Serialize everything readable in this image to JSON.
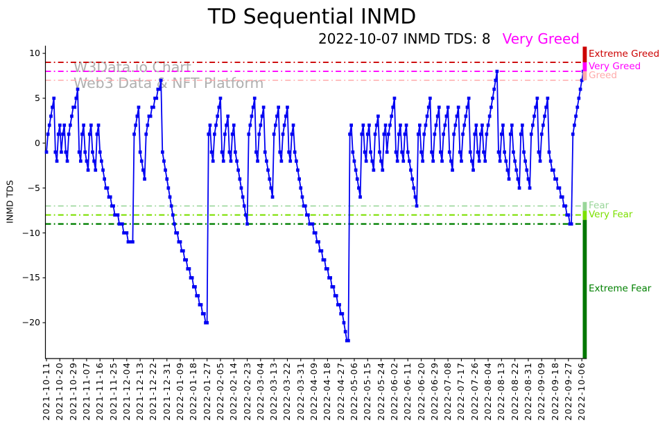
{
  "header": {
    "title": "TD Sequential INMD",
    "subtitle_left": "2022-10-07 INMD TDS: 8",
    "subtitle_status": "Very Greed",
    "subtitle_status_color": "#ff00ff"
  },
  "watermark": {
    "line1": "W3Data.io Chart",
    "line2": "Web3 Data & NFT Platform"
  },
  "chart_data": {
    "type": "line",
    "title": "TD Sequential INMD",
    "ylabel": "INMD TDS",
    "legend_position": "none",
    "grid": false,
    "x_start_date": "2021-10-11",
    "x_end_date": "2022-10-07",
    "x_tick_labels": [
      "2021-10-11",
      "2021-10-20",
      "2021-10-29",
      "2021-11-07",
      "2021-11-16",
      "2021-11-25",
      "2021-12-04",
      "2021-12-13",
      "2021-12-22",
      "2021-12-31",
      "2022-01-09",
      "2022-01-18",
      "2022-01-27",
      "2022-02-05",
      "2022-02-14",
      "2022-02-23",
      "2022-03-04",
      "2022-03-13",
      "2022-03-22",
      "2022-03-31",
      "2022-04-09",
      "2022-04-18",
      "2022-04-27",
      "2022-05-06",
      "2022-05-15",
      "2022-05-24",
      "2022-06-02",
      "2022-06-11",
      "2022-06-20",
      "2022-06-29",
      "2022-07-08",
      "2022-07-17",
      "2022-07-26",
      "2022-08-04",
      "2022-08-13",
      "2022-08-22",
      "2022-08-31",
      "2022-09-09",
      "2022-09-18",
      "2022-09-27",
      "2022-10-06"
    ],
    "y_tick_labels": [
      "10",
      "5",
      "0",
      "−5",
      "−10",
      "−15",
      "−20"
    ],
    "y_tick_values": [
      10,
      5,
      0,
      -5,
      -10,
      -15,
      -20
    ],
    "ylim": [
      -24,
      10.8
    ],
    "thresholds": [
      {
        "label": "Extreme Greed",
        "value": 9,
        "color": "#cc0000"
      },
      {
        "label": "Very Greed",
        "value": 8,
        "color": "#ff00ff"
      },
      {
        "label": "Greed",
        "value": 7,
        "color": "#ffaaaa"
      },
      {
        "label": "Fear",
        "value": -7,
        "color": "#99d699"
      },
      {
        "label": "Very Fear",
        "value": -8,
        "color": "#7ce000"
      },
      {
        "label": "Extreme Fear",
        "value": -9,
        "color": "#008000"
      }
    ],
    "zones": [
      {
        "name": "extreme-greed",
        "color": "#cc0000",
        "from": 10.75,
        "to": 9.0
      },
      {
        "name": "very-greed",
        "color": "#ff00ff",
        "from": 9.0,
        "to": 8.0
      },
      {
        "name": "greed",
        "color": "#ffaaaa",
        "from": 8.0,
        "to": 7.0
      },
      {
        "name": "fear",
        "color": "#99d699",
        "from": -6.55,
        "to": -7.55
      },
      {
        "name": "very-fear",
        "color": "#7ce000",
        "from": -7.55,
        "to": -8.55
      },
      {
        "name": "extreme-fear",
        "color": "#007700",
        "from": -8.55,
        "to": -23.95
      }
    ],
    "series": [
      {
        "name": "INMD TDS",
        "color": "#0000f2",
        "marker": "square",
        "values": [
          -1,
          1,
          2,
          3,
          4,
          5,
          -1,
          -2,
          1,
          2,
          -1,
          1,
          2,
          -1,
          -2,
          1,
          2,
          3,
          4,
          4,
          5,
          6,
          -1,
          -2,
          1,
          2,
          -1,
          -2,
          -3,
          1,
          2,
          -1,
          -2,
          -3,
          1,
          2,
          -1,
          -2,
          -3,
          -4,
          -5,
          -5,
          -6,
          -6,
          -7,
          -7,
          -8,
          -8,
          -8,
          -9,
          -9,
          -9,
          -10,
          -10,
          -10,
          -11,
          -11,
          -11,
          -11,
          1,
          2,
          3,
          4,
          -1,
          -2,
          -3,
          -4,
          1,
          2,
          3,
          3,
          4,
          4,
          5,
          5,
          6,
          6,
          7,
          -1,
          -2,
          -3,
          -4,
          -5,
          -6,
          -7,
          -8,
          -9,
          -10,
          -10,
          -11,
          -11,
          -12,
          -12,
          -13,
          -13,
          -14,
          -14,
          -15,
          -15,
          -16,
          -16,
          -17,
          -17,
          -18,
          -18,
          -19,
          -19,
          -20,
          -20,
          1,
          2,
          -1,
          -2,
          1,
          2,
          3,
          4,
          5,
          -1,
          -2,
          1,
          2,
          3,
          -1,
          -2,
          1,
          2,
          -1,
          -2,
          -3,
          -4,
          -5,
          -6,
          -7,
          -8,
          -9,
          1,
          2,
          3,
          4,
          5,
          -1,
          -2,
          1,
          2,
          3,
          4,
          -1,
          -2,
          -3,
          -4,
          -5,
          -6,
          1,
          2,
          3,
          4,
          -1,
          -2,
          1,
          2,
          3,
          4,
          -1,
          -2,
          1,
          2,
          -1,
          -2,
          -3,
          -4,
          -5,
          -6,
          -7,
          -7,
          -8,
          -8,
          -9,
          -9,
          -9,
          -10,
          -10,
          -11,
          -11,
          -12,
          -12,
          -13,
          -13,
          -14,
          -14,
          -15,
          -15,
          -16,
          -16,
          -17,
          -17,
          -18,
          -18,
          -19,
          -19,
          -20,
          -21,
          -22,
          -22,
          1,
          2,
          -1,
          -2,
          -3,
          -4,
          -5,
          -6,
          1,
          2,
          -1,
          -2,
          1,
          2,
          -1,
          -2,
          -3,
          1,
          2,
          3,
          -1,
          -2,
          -3,
          1,
          2,
          -1,
          1,
          2,
          3,
          4,
          5,
          -1,
          -2,
          1,
          2,
          -1,
          -2,
          1,
          2,
          -1,
          -2,
          -3,
          -4,
          -5,
          -6,
          -7,
          1,
          2,
          -1,
          -2,
          1,
          2,
          3,
          4,
          5,
          -1,
          -2,
          1,
          2,
          3,
          4,
          -1,
          -2,
          1,
          2,
          3,
          4,
          -1,
          -2,
          -3,
          1,
          2,
          3,
          4,
          -1,
          -2,
          1,
          2,
          3,
          4,
          5,
          -1,
          -2,
          -3,
          1,
          2,
          -1,
          -2,
          1,
          2,
          -1,
          -2,
          1,
          2,
          3,
          4,
          5,
          6,
          7,
          8,
          -1,
          -2,
          1,
          2,
          -1,
          -2,
          -3,
          -4,
          1,
          2,
          -1,
          -2,
          -3,
          -4,
          -5,
          1,
          2,
          -1,
          -2,
          -3,
          -4,
          -5,
          1,
          2,
          3,
          4,
          5,
          -1,
          -2,
          1,
          2,
          3,
          4,
          5,
          -1,
          -2,
          -3,
          -3,
          -4,
          -4,
          -5,
          -5,
          -6,
          -6,
          -7,
          -7,
          -8,
          -8,
          -9,
          -9,
          1,
          2,
          3,
          4,
          5,
          6,
          7,
          8
        ]
      }
    ]
  }
}
